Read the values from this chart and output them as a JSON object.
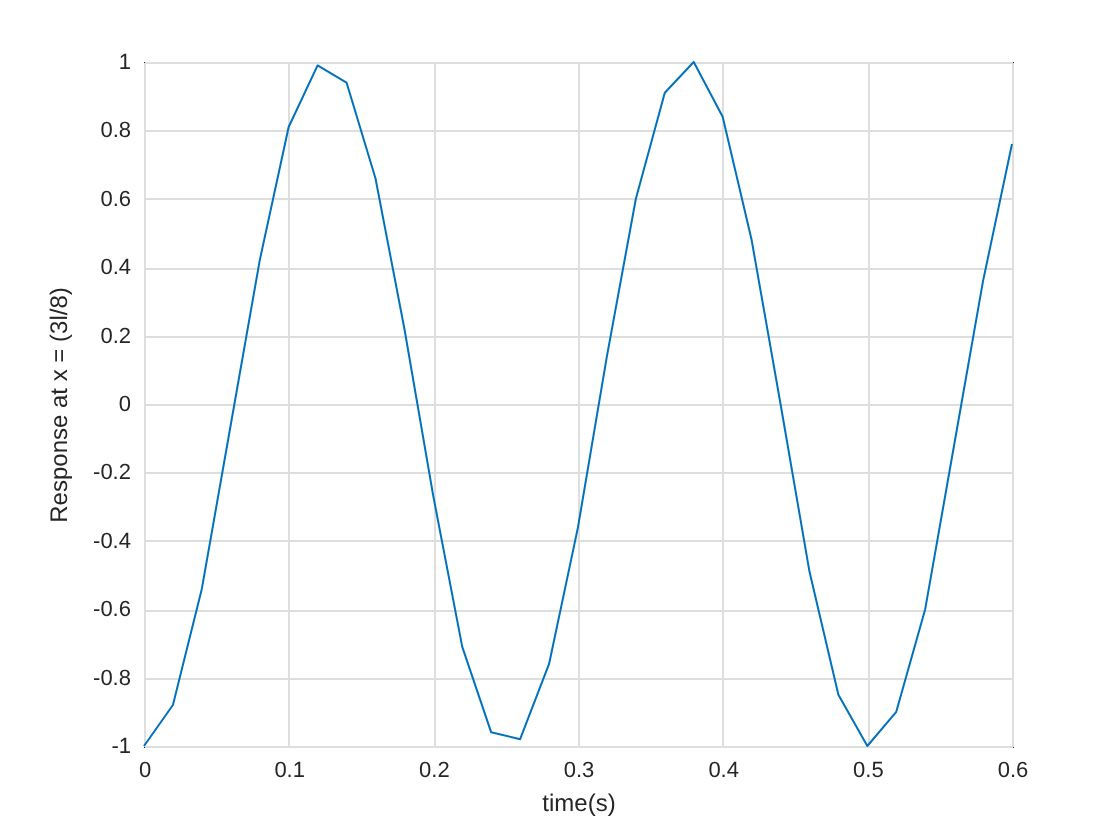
{
  "chart_data": {
    "type": "line",
    "xlabel": "time(s)",
    "ylabel": "Response at x = (3l/8)",
    "x": [
      0,
      0.02,
      0.04,
      0.06,
      0.08,
      0.1,
      0.12,
      0.14,
      0.16,
      0.18,
      0.2,
      0.22,
      0.24,
      0.26,
      0.28,
      0.3,
      0.32,
      0.34,
      0.36,
      0.38,
      0.4,
      0.42,
      0.44,
      0.46,
      0.48,
      0.5,
      0.52,
      0.54,
      0.56,
      0.58,
      0.6
    ],
    "series": [
      {
        "color": "#0072bd",
        "values": [
          -1,
          -0.88,
          -0.54,
          -0.06,
          0.42,
          0.81,
          0.99,
          0.94,
          0.66,
          0.22,
          -0.27,
          -0.71,
          -0.96,
          -0.98,
          -0.76,
          -0.36,
          0.14,
          0.6,
          0.91,
          1.0,
          0.84,
          0.48,
          0.0,
          -0.49,
          -0.85,
          -1.0,
          -0.9,
          -0.6,
          -0.12,
          0.36,
          0.76
        ]
      }
    ],
    "xlim": [
      0,
      0.6
    ],
    "ylim": [
      -1,
      1
    ],
    "xticks": [
      0,
      0.1,
      0.2,
      0.3,
      0.4,
      0.5,
      0.6
    ],
    "yticks": [
      -1,
      -0.8,
      -0.6,
      -0.4,
      -0.2,
      0,
      0.2,
      0.4,
      0.6,
      0.8,
      1
    ],
    "grid": true,
    "line_style": "solid"
  }
}
